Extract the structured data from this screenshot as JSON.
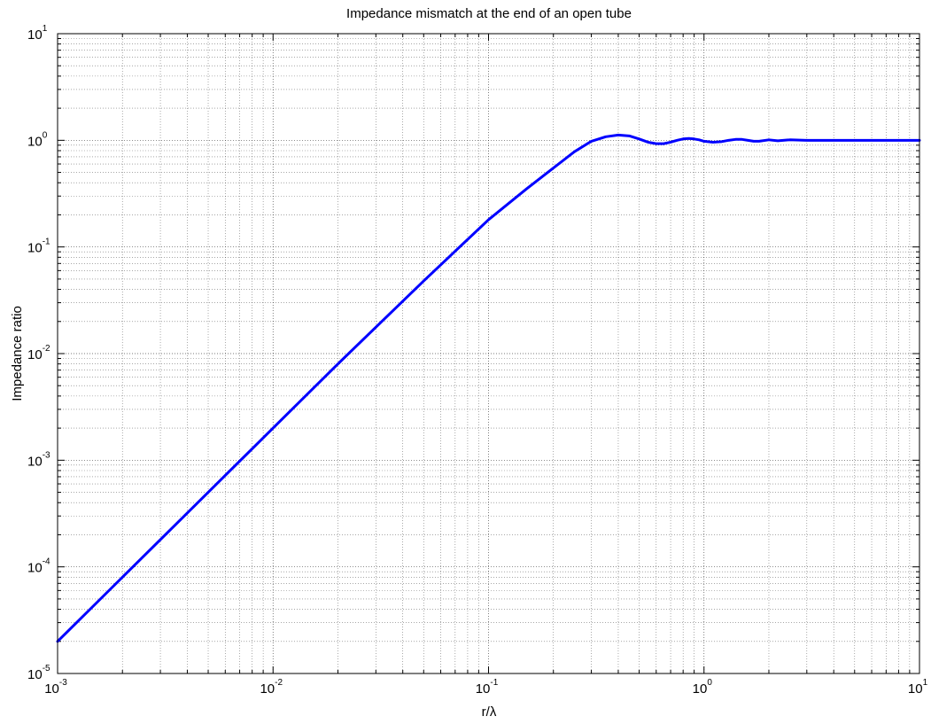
{
  "chart_data": {
    "type": "line",
    "title": "Impedance mismatch at the end of an open tube",
    "xlabel": "r/λ",
    "ylabel": "Impedance ratio",
    "xscale": "log",
    "yscale": "log",
    "xlim": [
      0.001,
      10
    ],
    "ylim": [
      1e-05,
      10
    ],
    "grid": true,
    "legend": "none",
    "x_ticks": [
      {
        "base": "10",
        "exp": "-3",
        "value": 0.001
      },
      {
        "base": "10",
        "exp": "-2",
        "value": 0.01
      },
      {
        "base": "10",
        "exp": "-1",
        "value": 0.1
      },
      {
        "base": "10",
        "exp": "0",
        "value": 1
      },
      {
        "base": "10",
        "exp": "1",
        "value": 10
      }
    ],
    "y_ticks": [
      {
        "base": "10",
        "exp": "-5",
        "value": 1e-05
      },
      {
        "base": "10",
        "exp": "-4",
        "value": 0.0001
      },
      {
        "base": "10",
        "exp": "-3",
        "value": 0.001
      },
      {
        "base": "10",
        "exp": "-2",
        "value": 0.01
      },
      {
        "base": "10",
        "exp": "-1",
        "value": 0.1
      },
      {
        "base": "10",
        "exp": "0",
        "value": 1
      },
      {
        "base": "10",
        "exp": "1",
        "value": 10
      }
    ],
    "series": [
      {
        "color": "#0000ff",
        "x": [
          0.001,
          0.002,
          0.005,
          0.01,
          0.02,
          0.05,
          0.1,
          0.15,
          0.2,
          0.25,
          0.3,
          0.35,
          0.4,
          0.45,
          0.5,
          0.55,
          0.6,
          0.65,
          0.7,
          0.75,
          0.8,
          0.85,
          0.9,
          0.95,
          1.0,
          1.1,
          1.2,
          1.3,
          1.4,
          1.5,
          1.6,
          1.7,
          1.8,
          2.0,
          2.2,
          2.5,
          3.0,
          4.0,
          5.0,
          7.0,
          10.0
        ],
        "y": [
          2e-05,
          8e-05,
          0.0005,
          0.002,
          0.008,
          0.048,
          0.18,
          0.35,
          0.55,
          0.78,
          0.98,
          1.08,
          1.12,
          1.1,
          1.03,
          0.96,
          0.93,
          0.93,
          0.96,
          1.0,
          1.03,
          1.04,
          1.03,
          1.01,
          0.98,
          0.96,
          0.97,
          1.0,
          1.02,
          1.02,
          1.0,
          0.98,
          0.98,
          1.01,
          0.99,
          1.01,
          1.0,
          1.0,
          1.0,
          1.0,
          1.0
        ]
      }
    ]
  }
}
